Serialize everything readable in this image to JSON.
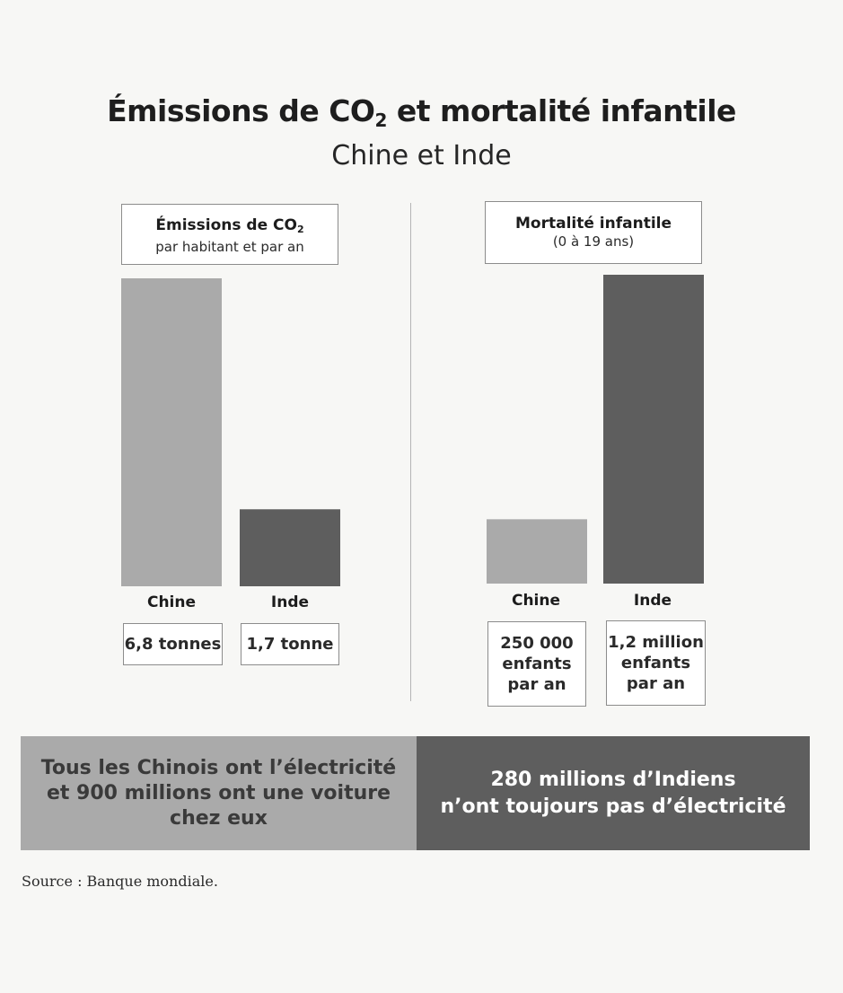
{
  "title": {
    "main": "Émissions de CO",
    "sub": "2",
    "rest": " et mortalité infantile"
  },
  "subtitle": "Chine et Inde",
  "chart_data": [
    {
      "type": "bar",
      "title": {
        "main": "Émissions de CO",
        "sub": "2"
      },
      "subtitle": "par habitant et par an",
      "categories": [
        "Chine",
        "Inde"
      ],
      "values": [
        6.8,
        1.7
      ],
      "value_labels": [
        "6,8 tonnes",
        "1,7 tonne"
      ],
      "unit": "tonnes",
      "colors": [
        "#aaaaaa",
        "#5e5e5e"
      ]
    },
    {
      "type": "bar",
      "title": {
        "main": "Mortalité infantile"
      },
      "subtitle": "(0 à 19 ans)",
      "categories": [
        "Chine",
        "Inde"
      ],
      "values": [
        250000,
        1200000
      ],
      "value_labels": [
        [
          "250 000",
          "enfants",
          "par an"
        ],
        [
          "1,2 million",
          "enfants",
          "par an"
        ]
      ],
      "unit": "enfants par an",
      "colors": [
        "#aaaaaa",
        "#5e5e5e"
      ]
    }
  ],
  "banners": {
    "left": [
      "Tous les Chinois ont l’électricité",
      "et 900 millions ont une voiture",
      "chez eux"
    ],
    "right": [
      "280 millions d’Indiens",
      "n’ont toujours pas d’électricité"
    ]
  },
  "source": "Source : Banque mondiale."
}
